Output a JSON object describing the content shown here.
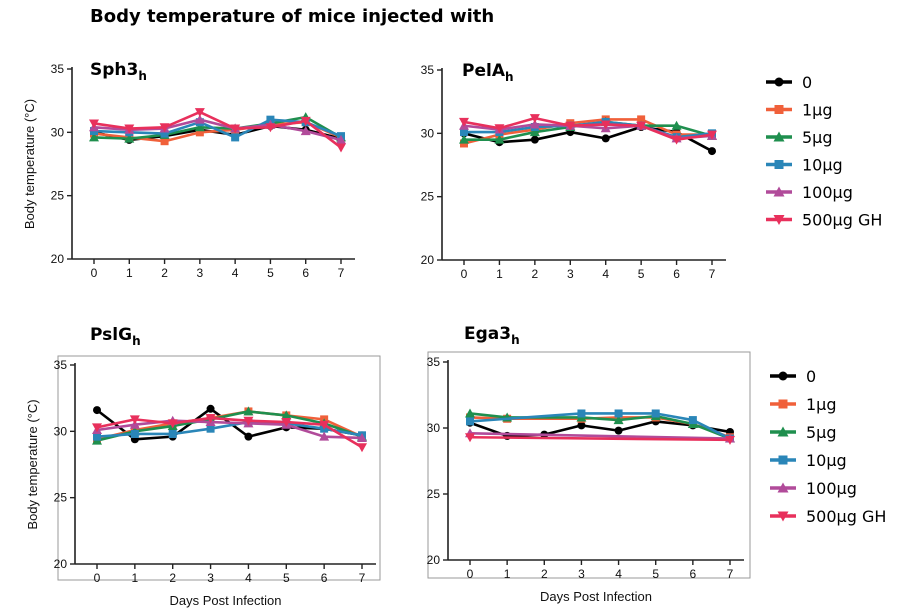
{
  "figure": {
    "title": "Body temperature of mice injected with",
    "colors": {
      "0": "#000000",
      "1µg": "#f0603a",
      "5µg": "#1f8f4e",
      "10µg": "#2a86b8",
      "100µg": "#b14b9a",
      "500µg GH": "#e8305c"
    },
    "markers": {
      "0": "circle",
      "1µg": "square",
      "5µg": "triangle-up",
      "10µg": "square",
      "100µg": "triangle-up",
      "500µg GH": "triangle-down"
    }
  },
  "legends": [
    {
      "entries": [
        "0",
        "1µg",
        "5µg",
        "10µg",
        "100µg",
        "500µg GH"
      ]
    },
    {
      "entries": [
        "0",
        "1µg",
        "5µg",
        "10µg",
        "100µg",
        "500µg GH"
      ]
    }
  ],
  "chart_data": [
    {
      "type": "line",
      "title": "Sph3",
      "title_subscript": "h",
      "ylabel": "Body temperature (°C)",
      "xlabel": "",
      "ylim": [
        20,
        35
      ],
      "yticks": [
        20,
        25,
        30,
        35
      ],
      "xticks": [
        0,
        1,
        2,
        3,
        4,
        5,
        6,
        7
      ],
      "x": [
        0,
        1,
        2,
        3,
        4,
        5,
        6,
        7
      ],
      "series": [
        {
          "name": "0",
          "values": [
            30.0,
            29.4,
            29.7,
            30.2,
            29.8,
            30.5,
            30.2,
            29.5
          ]
        },
        {
          "name": "1µg",
          "values": [
            29.9,
            29.6,
            29.3,
            30.0,
            30.2,
            30.6,
            30.8,
            29.6
          ]
        },
        {
          "name": "5µg",
          "values": [
            29.6,
            29.5,
            29.8,
            30.4,
            30.3,
            30.7,
            31.2,
            29.6
          ]
        },
        {
          "name": "10µg",
          "values": [
            30.1,
            30.0,
            29.9,
            30.8,
            29.6,
            31.0,
            30.8,
            29.7
          ]
        },
        {
          "name": "100µg",
          "values": [
            30.4,
            30.2,
            30.3,
            31.0,
            30.3,
            30.6,
            30.1,
            29.4
          ]
        },
        {
          "name": "500µg GH",
          "values": [
            30.7,
            30.3,
            30.4,
            31.6,
            30.3,
            30.4,
            30.9,
            28.8
          ]
        }
      ]
    },
    {
      "type": "line",
      "title": "PelA",
      "title_subscript": "h",
      "ylabel": "",
      "xlabel": "",
      "ylim": [
        20,
        35
      ],
      "yticks": [
        20,
        25,
        30,
        35
      ],
      "xticks": [
        0,
        1,
        2,
        3,
        4,
        5,
        6,
        7
      ],
      "x": [
        0,
        1,
        2,
        3,
        4,
        5,
        6,
        7
      ],
      "series": [
        {
          "name": "0",
          "values": [
            30.0,
            29.3,
            29.5,
            30.1,
            29.6,
            30.5,
            30.1,
            28.6
          ]
        },
        {
          "name": "1µg",
          "values": [
            29.2,
            29.9,
            30.3,
            30.8,
            31.1,
            31.1,
            29.9,
            29.9
          ]
        },
        {
          "name": "5µg",
          "values": [
            29.5,
            29.5,
            30.1,
            30.5,
            30.9,
            30.6,
            30.6,
            29.8
          ]
        },
        {
          "name": "10µg",
          "values": [
            30.1,
            30.1,
            30.5,
            30.6,
            30.9,
            30.6,
            29.7,
            30.0
          ]
        },
        {
          "name": "100µg",
          "values": [
            30.6,
            30.3,
            30.7,
            30.6,
            30.4,
            30.6,
            29.6,
            29.8
          ]
        },
        {
          "name": "500µg GH",
          "values": [
            30.9,
            30.4,
            31.2,
            30.6,
            30.7,
            30.6,
            29.5,
            29.9
          ]
        }
      ]
    },
    {
      "type": "line",
      "title": "PslG",
      "title_subscript": "h",
      "ylabel": "Body temperature (°C)",
      "xlabel": "Days Post Infection",
      "ylim": [
        20,
        35
      ],
      "yticks": [
        20,
        25,
        30,
        35
      ],
      "xticks": [
        0,
        1,
        2,
        3,
        4,
        5,
        6,
        7
      ],
      "x": [
        0,
        1,
        2,
        3,
        4,
        5,
        6,
        7
      ],
      "series": [
        {
          "name": "0",
          "values": [
            31.6,
            29.4,
            29.6,
            31.7,
            29.6,
            30.3,
            30.2,
            29.7
          ]
        },
        {
          "name": "1µg",
          "values": [
            29.4,
            30.1,
            30.6,
            31.0,
            31.5,
            31.2,
            30.9,
            29.6
          ]
        },
        {
          "name": "5µg",
          "values": [
            29.3,
            30.0,
            30.4,
            30.9,
            31.5,
            31.2,
            30.6,
            29.6
          ]
        },
        {
          "name": "10µg",
          "values": [
            29.6,
            29.8,
            29.8,
            30.2,
            30.7,
            30.6,
            30.2,
            29.7
          ]
        },
        {
          "name": "100µg",
          "values": [
            30.1,
            30.5,
            30.8,
            30.7,
            30.6,
            30.5,
            29.6,
            29.5
          ]
        },
        {
          "name": "500µg GH",
          "values": [
            30.3,
            30.9,
            30.6,
            31.0,
            30.8,
            30.7,
            30.5,
            28.8
          ]
        }
      ]
    },
    {
      "type": "line",
      "title": "Ega3",
      "title_subscript": "h",
      "ylabel": "",
      "xlabel": "Days Post Infection",
      "ylim": [
        20,
        35
      ],
      "yticks": [
        20,
        25,
        30,
        35
      ],
      "xticks": [
        0,
        1,
        2,
        3,
        4,
        5,
        6,
        7
      ],
      "x": [
        0,
        1,
        2,
        3,
        4,
        5,
        6,
        7
      ],
      "series": [
        {
          "name": "0",
          "values": [
            30.4,
            29.4,
            29.5,
            30.2,
            29.8,
            30.5,
            30.2,
            29.7
          ]
        },
        {
          "name": "1µg",
          "values": [
            30.8,
            30.7,
            null,
            30.7,
            30.8,
            30.8,
            30.3,
            29.3
          ]
        },
        {
          "name": "5µg",
          "values": [
            31.1,
            30.8,
            null,
            30.8,
            30.6,
            30.9,
            30.3,
            29.2
          ]
        },
        {
          "name": "10µg",
          "values": [
            30.5,
            null,
            null,
            31.1,
            31.1,
            31.1,
            30.6,
            29.2
          ]
        },
        {
          "name": "100µg",
          "values": [
            29.6,
            null,
            null,
            null,
            null,
            null,
            null,
            29.2
          ]
        },
        {
          "name": "500µg GH",
          "values": [
            29.3,
            null,
            null,
            null,
            null,
            null,
            null,
            29.1
          ]
        }
      ]
    }
  ]
}
